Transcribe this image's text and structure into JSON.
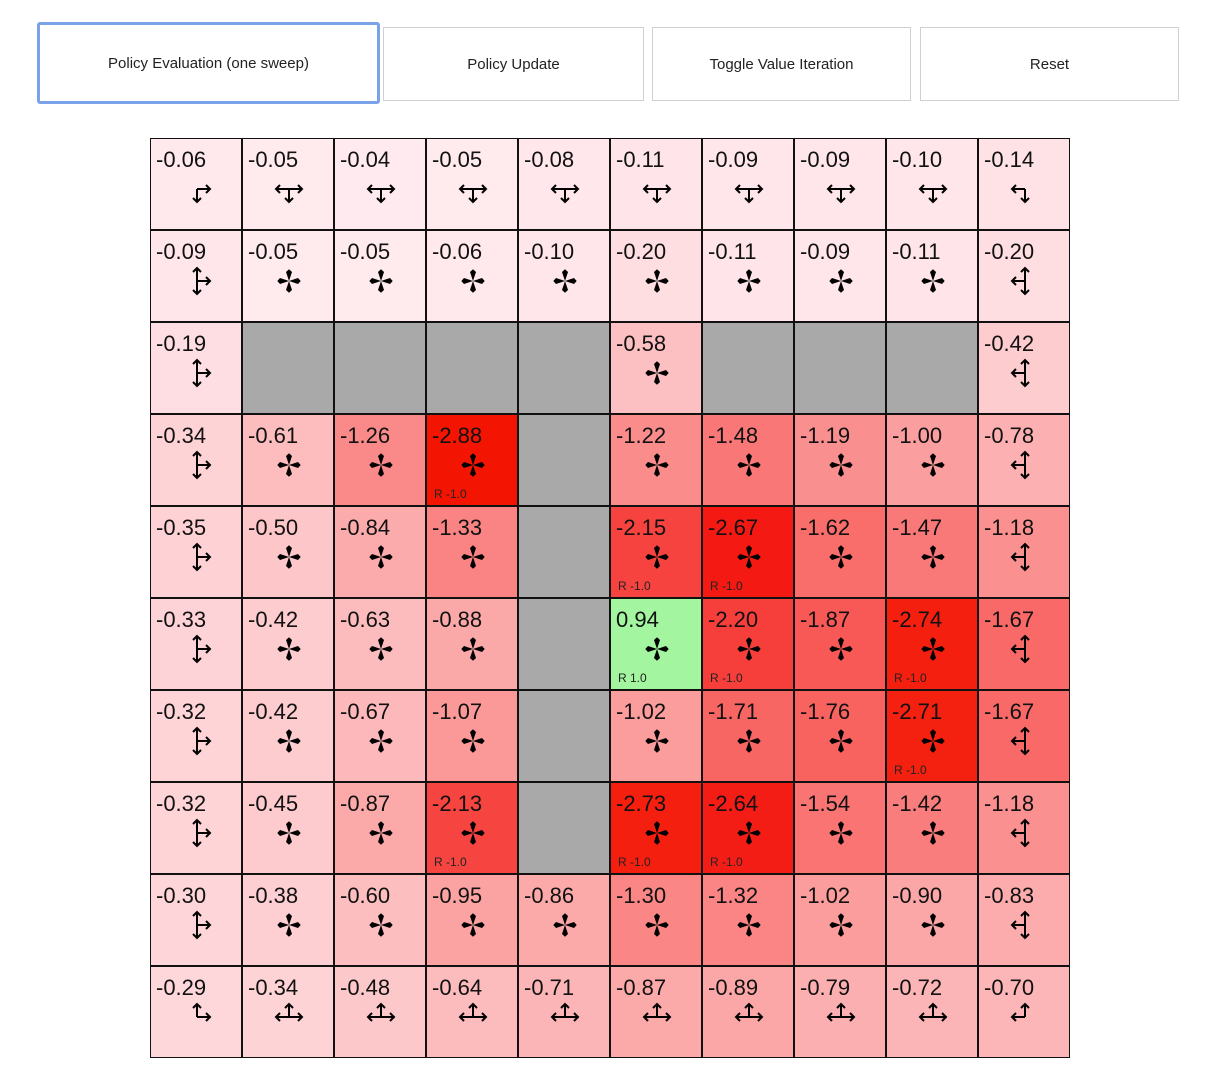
{
  "buttons": [
    {
      "label": "Policy Evaluation (one sweep)",
      "focused": true
    },
    {
      "label": "Policy Update"
    },
    {
      "label": "Toggle Value Iteration"
    },
    {
      "label": "Reset"
    }
  ],
  "grid": {
    "rows": 10,
    "cols": 10,
    "wall_color": "#a9a9a9",
    "positive_color": "#a3f5a0",
    "negative_color": "#ff2200",
    "values": [
      [
        "-0.06",
        "-0.05",
        "-0.04",
        "-0.05",
        "-0.08",
        "-0.11",
        "-0.09",
        "-0.09",
        "-0.10",
        "-0.14"
      ],
      [
        "-0.09",
        "-0.05",
        "-0.05",
        "-0.06",
        "-0.10",
        "-0.20",
        "-0.11",
        "-0.09",
        "-0.11",
        "-0.20"
      ],
      [
        "-0.19",
        null,
        null,
        null,
        null,
        "-0.58",
        null,
        null,
        null,
        "-0.42"
      ],
      [
        "-0.34",
        "-0.61",
        "-1.26",
        "-2.88",
        null,
        "-1.22",
        "-1.48",
        "-1.19",
        "-1.00",
        "-0.78"
      ],
      [
        "-0.35",
        "-0.50",
        "-0.84",
        "-1.33",
        null,
        "-2.15",
        "-2.67",
        "-1.62",
        "-1.47",
        "-1.18"
      ],
      [
        "-0.33",
        "-0.42",
        "-0.63",
        "-0.88",
        null,
        "0.94",
        "-2.20",
        "-1.87",
        "-2.74",
        "-1.67"
      ],
      [
        "-0.32",
        "-0.42",
        "-0.67",
        "-1.07",
        null,
        "-1.02",
        "-1.71",
        "-1.76",
        "-2.71",
        "-1.67"
      ],
      [
        "-0.32",
        "-0.45",
        "-0.87",
        "-2.13",
        null,
        "-2.73",
        "-2.64",
        "-1.54",
        "-1.42",
        "-1.18"
      ],
      [
        "-0.30",
        "-0.38",
        "-0.60",
        "-0.95",
        "-0.86",
        "-1.30",
        "-1.32",
        "-1.02",
        "-0.90",
        "-0.83"
      ],
      [
        "-0.29",
        "-0.34",
        "-0.48",
        "-0.64",
        "-0.71",
        "-0.87",
        "-0.89",
        "-0.79",
        "-0.72",
        "-0.70"
      ]
    ],
    "rewards": [
      {
        "row": 3,
        "col": 3,
        "label": "R -1.0"
      },
      {
        "row": 4,
        "col": 5,
        "label": "R -1.0"
      },
      {
        "row": 4,
        "col": 6,
        "label": "R -1.0"
      },
      {
        "row": 5,
        "col": 5,
        "label": "R 1.0"
      },
      {
        "row": 5,
        "col": 6,
        "label": "R -1.0"
      },
      {
        "row": 5,
        "col": 8,
        "label": "R -1.0"
      },
      {
        "row": 6,
        "col": 8,
        "label": "R -1.0"
      },
      {
        "row": 7,
        "col": 3,
        "label": "R -1.0"
      },
      {
        "row": 7,
        "col": 5,
        "label": "R -1.0"
      },
      {
        "row": 7,
        "col": 6,
        "label": "R -1.0"
      }
    ]
  }
}
